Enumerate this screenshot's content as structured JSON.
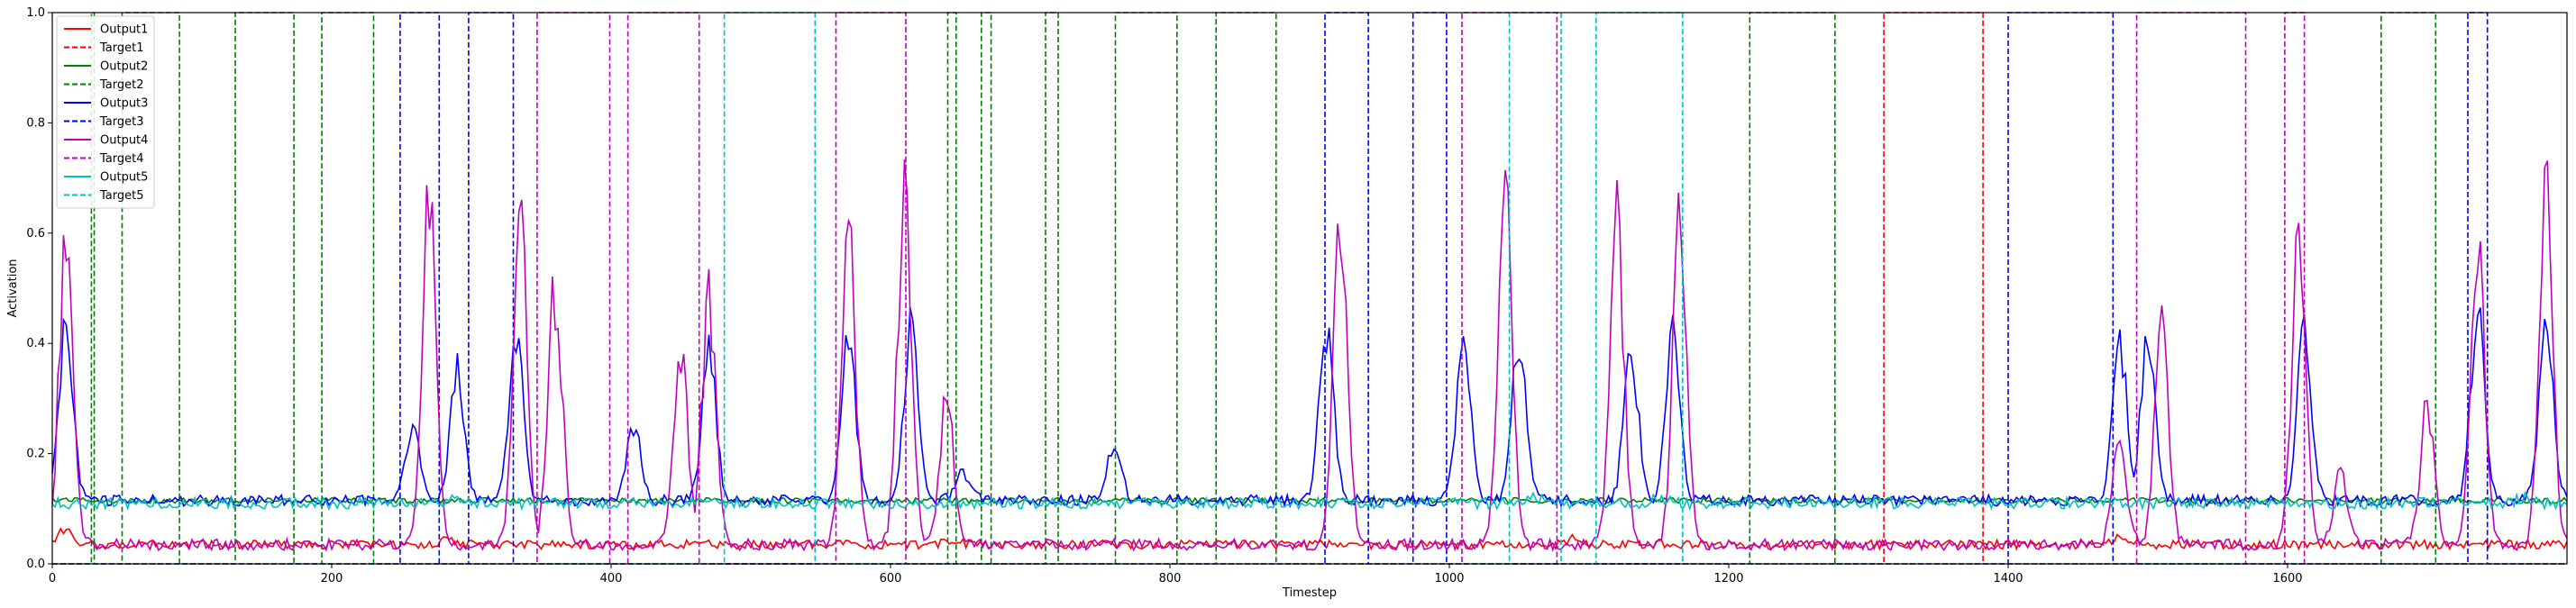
{
  "chart_data": {
    "type": "line",
    "xlabel": "Timestep",
    "ylabel": "Activation",
    "xlim": [
      0,
      1800
    ],
    "ylim": [
      0,
      1.0
    ],
    "x_ticks": [
      0,
      200,
      400,
      600,
      800,
      1000,
      1200,
      1400,
      1600
    ],
    "y_ticks": [
      0.0,
      0.2,
      0.4,
      0.6,
      0.8,
      1.0
    ],
    "grid": false,
    "legend_position": "top-left",
    "series": [
      {
        "name": "Output1",
        "color": "#ff0000",
        "style": "solid",
        "baseline": 0.035,
        "amp": 0.008,
        "spikes": [
          [
            9,
            0.06
          ],
          [
            285,
            0.045
          ],
          [
            645,
            0.045
          ],
          [
            1090,
            0.05
          ],
          [
            1480,
            0.05
          ]
        ]
      },
      {
        "name": "Target1",
        "color": "#ff0000",
        "style": "dashed",
        "intervals": [
          [
            1311,
            1382
          ]
        ]
      },
      {
        "name": "Output2",
        "color": "#008000",
        "style": "solid",
        "baseline": 0.115,
        "amp": 0.005,
        "spikes": [
          [
            9,
            0.09
          ],
          [
            1090,
            0.07
          ],
          [
            1750,
            0.07
          ]
        ]
      },
      {
        "name": "Target2",
        "color": "#008000",
        "style": "dashed",
        "intervals": [
          [
            28,
            30
          ],
          [
            50,
            91
          ],
          [
            131,
            173
          ],
          [
            193,
            230
          ],
          [
            641,
            647
          ],
          [
            665,
            672
          ],
          [
            711,
            720
          ],
          [
            761,
            805
          ],
          [
            833,
            876
          ],
          [
            1215,
            1276
          ],
          [
            1667,
            1706
          ]
        ]
      },
      {
        "name": "Output3",
        "color": "#0000ff",
        "style": "solid",
        "baseline": 0.115,
        "amp": 0.01,
        "spikes": [
          [
            10,
            0.42
          ],
          [
            258,
            0.25
          ],
          [
            290,
            0.35
          ],
          [
            332,
            0.42
          ],
          [
            416,
            0.26
          ],
          [
            470,
            0.38
          ],
          [
            570,
            0.42
          ],
          [
            615,
            0.44
          ],
          [
            652,
            0.17
          ],
          [
            760,
            0.22
          ],
          [
            912,
            0.43
          ],
          [
            1010,
            0.4
          ],
          [
            1050,
            0.41
          ],
          [
            1130,
            0.4
          ],
          [
            1160,
            0.41
          ],
          [
            1480,
            0.4
          ],
          [
            1500,
            0.42
          ],
          [
            1612,
            0.42
          ],
          [
            1736,
            0.45
          ],
          [
            1785,
            0.45
          ]
        ]
      },
      {
        "name": "Target3",
        "color": "#0000ff",
        "style": "dashed",
        "intervals": [
          [
            249,
            277
          ],
          [
            298,
            330
          ],
          [
            911,
            942
          ],
          [
            974,
            998
          ],
          [
            1400,
            1475
          ],
          [
            1729,
            1743
          ]
        ]
      },
      {
        "name": "Output4",
        "color": "#c000c0",
        "style": "solid",
        "baseline": 0.035,
        "amp": 0.01,
        "spikes": [
          [
            10,
            0.6
          ],
          [
            270,
            0.67
          ],
          [
            335,
            0.64
          ],
          [
            360,
            0.5
          ],
          [
            450,
            0.38
          ],
          [
            470,
            0.48
          ],
          [
            570,
            0.58
          ],
          [
            610,
            0.66
          ],
          [
            640,
            0.3
          ],
          [
            922,
            0.65
          ],
          [
            1040,
            0.65
          ],
          [
            1120,
            0.62
          ],
          [
            1165,
            0.61
          ],
          [
            1480,
            0.22
          ],
          [
            1510,
            0.42
          ],
          [
            1608,
            0.58
          ],
          [
            1638,
            0.17
          ],
          [
            1700,
            0.29
          ],
          [
            1736,
            0.56
          ],
          [
            1785,
            0.68
          ]
        ]
      },
      {
        "name": "Target4",
        "color": "#c000c0",
        "style": "dashed",
        "intervals": [
          [
            347,
            399
          ],
          [
            412,
            463
          ],
          [
            561,
            611
          ],
          [
            1009,
            1077
          ],
          [
            1492,
            1570
          ],
          [
            1598,
            1612
          ]
        ]
      },
      {
        "name": "Output5",
        "color": "#00c0c0",
        "style": "solid",
        "baseline": 0.11,
        "amp": 0.01,
        "spikes": [
          [
            290,
            0.12
          ],
          [
            1060,
            0.12
          ],
          [
            1150,
            0.12
          ],
          [
            1770,
            0.12
          ]
        ]
      },
      {
        "name": "Target5",
        "color": "#00c0c0",
        "style": "dashed",
        "intervals": [
          [
            481,
            546
          ],
          [
            1043,
            1080
          ],
          [
            1105,
            1167
          ]
        ]
      }
    ]
  }
}
